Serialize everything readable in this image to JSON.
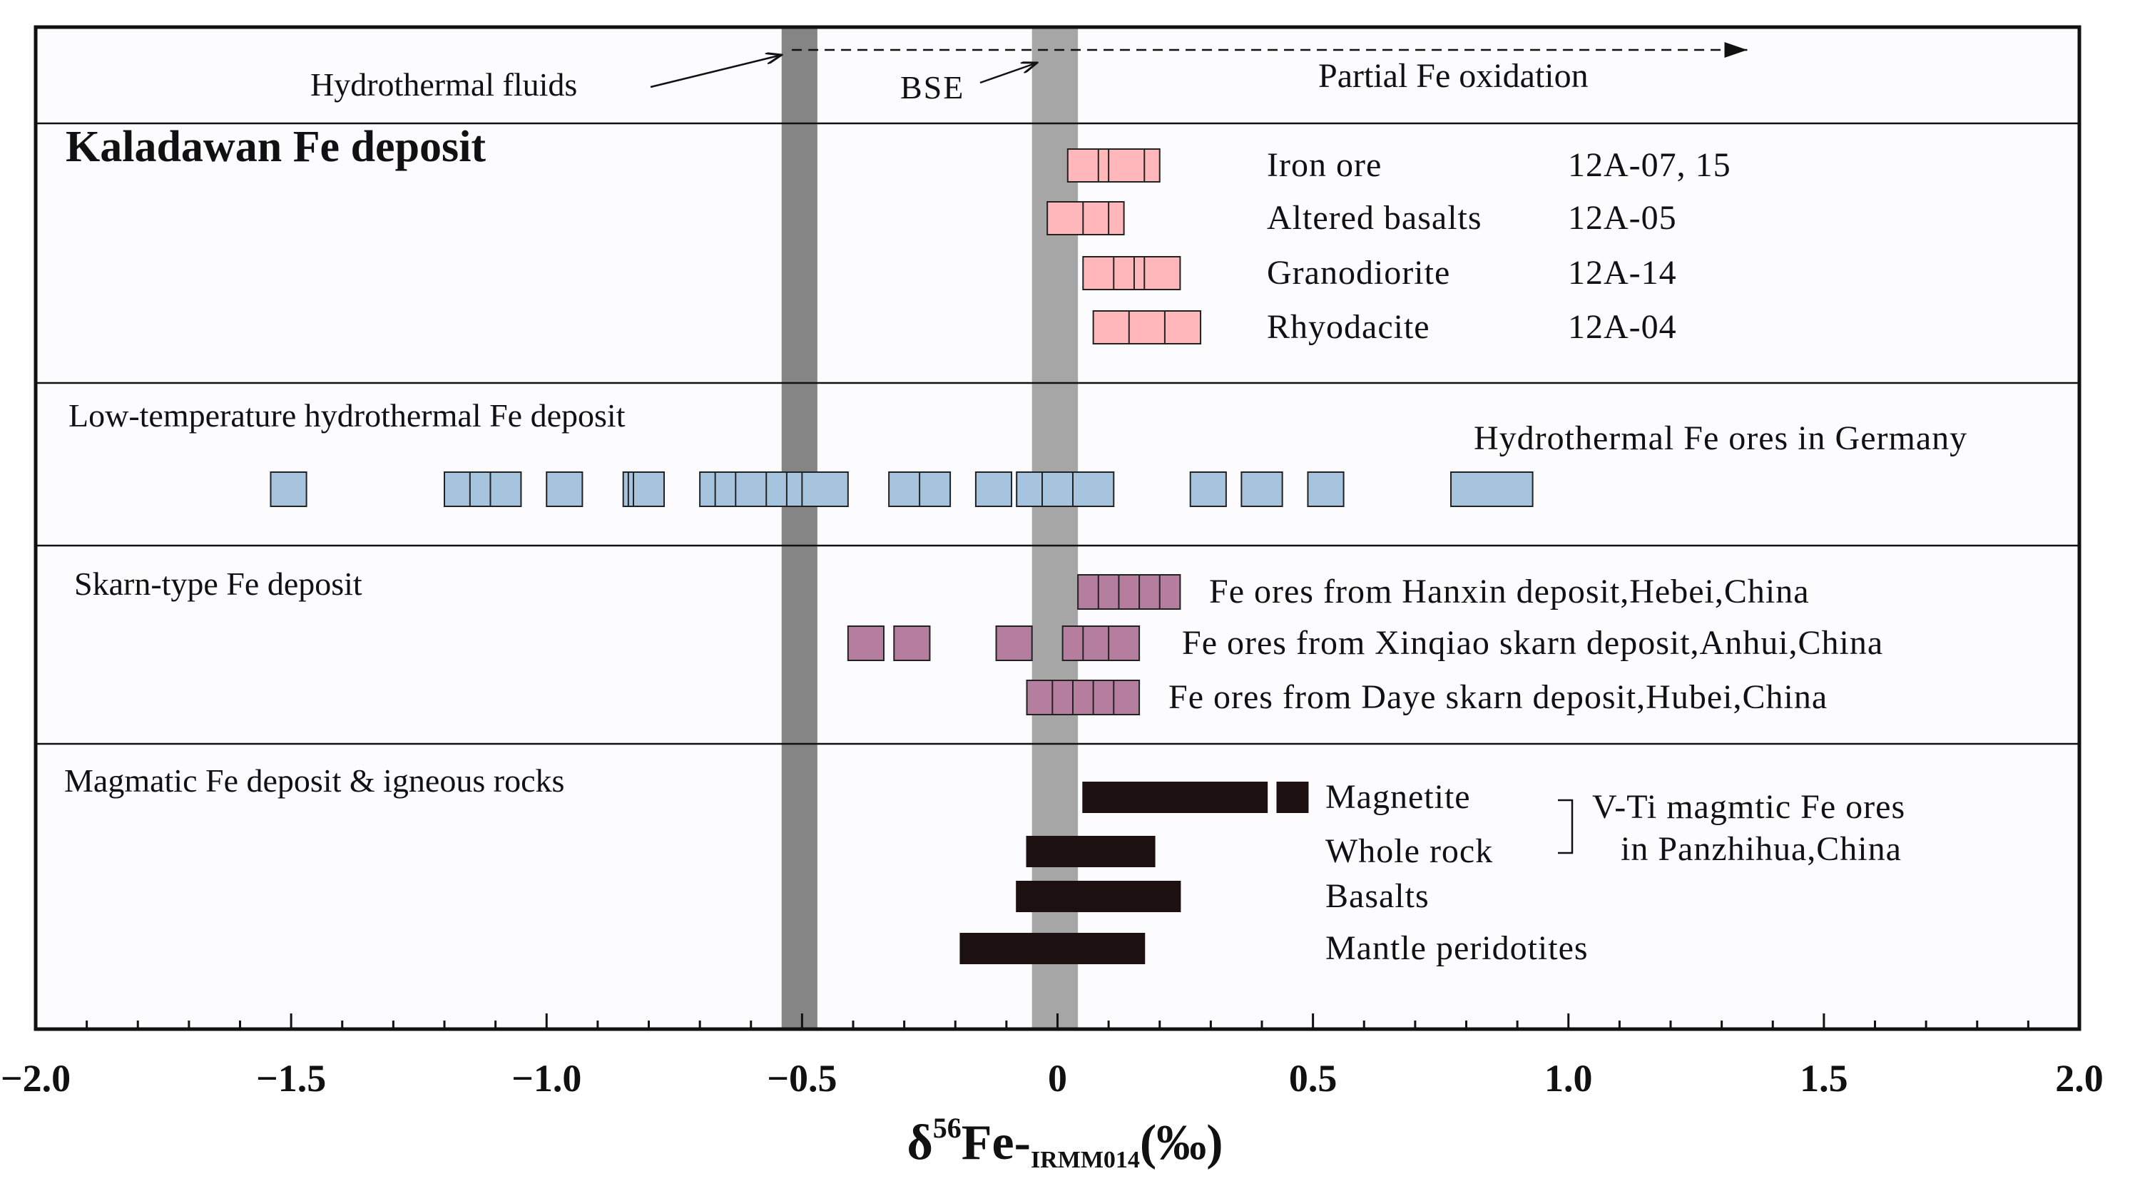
{
  "chart_data": {
    "type": "range",
    "title": "",
    "xlabel": "δ56Fe-IRMM014(‰)",
    "xlabel_parts": {
      "delta": "δ",
      "sup": "56",
      "main": "Fe-",
      "sub": "IRMM014",
      "unit": "(‰)"
    },
    "xlim": [
      -2.0,
      2.0
    ],
    "ticks": [
      {
        "value": -2.0,
        "label": "−2.0"
      },
      {
        "value": -1.5,
        "label": "−1.5"
      },
      {
        "value": -1.0,
        "label": "−1.0"
      },
      {
        "value": -0.5,
        "label": "−0.5"
      },
      {
        "value": 0.0,
        "label": "0"
      },
      {
        "value": 0.5,
        "label": "0.5"
      },
      {
        "value": 1.0,
        "label": "1.0"
      },
      {
        "value": 1.5,
        "label": "1.5"
      },
      {
        "value": 2.0,
        "label": "2.0"
      }
    ],
    "minor_tick_step": 0.1,
    "reference_bands": [
      {
        "name": "Hydrothermal fluids",
        "range": [
          -0.54,
          -0.47
        ],
        "color": "#858585"
      },
      {
        "name": "BSE",
        "range": [
          -0.05,
          0.04
        ],
        "color": "#a6a6a6"
      }
    ],
    "header": {
      "labels": [
        {
          "text": "Hydrothermal fluids",
          "arrow_to": -0.54
        },
        {
          "text": "BSE",
          "arrow_to": -0.04
        },
        {
          "text": "Partial Fe oxidation"
        }
      ],
      "oxidation_arrow_range": [
        -0.52,
        1.35
      ]
    },
    "panels": [
      {
        "title": "Kaladawan Fe deposit",
        "title_bold": true,
        "color": "#ffb7b9",
        "series": [
          {
            "name": "Iron ore",
            "sample": "12A-07, 15",
            "range": [
              0.02,
              0.2
            ],
            "dividers": [
              0.08,
              0.1,
              0.17
            ]
          },
          {
            "name": "Altered basalts",
            "sample": "12A-05",
            "range": [
              -0.02,
              0.13
            ],
            "dividers": [
              0.05,
              0.1
            ]
          },
          {
            "name": "Granodiorite",
            "sample": "12A-14",
            "range": [
              0.05,
              0.24
            ],
            "dividers": [
              0.11,
              0.15,
              0.17
            ]
          },
          {
            "name": "Rhyodacite",
            "sample": "12A-04",
            "range": [
              0.07,
              0.28
            ],
            "dividers": [
              0.14,
              0.21
            ]
          }
        ]
      },
      {
        "title": "Low-temperature hydrothermal Fe deposit",
        "color": "#a7c4df",
        "series": [
          {
            "name": "Hydrothermal Fe ores in Germany",
            "segments": [
              [
                -1.54,
                -1.47
              ],
              [
                -1.2,
                -1.05
              ],
              [
                -1.0,
                -0.93
              ],
              [
                -0.85,
                -0.77
              ],
              [
                -0.7,
                -0.41
              ],
              [
                -0.33,
                -0.21
              ],
              [
                -0.16,
                -0.09
              ],
              [
                -0.08,
                0.11
              ],
              [
                0.26,
                0.33
              ],
              [
                0.36,
                0.44
              ],
              [
                0.49,
                0.56
              ],
              [
                0.77,
                0.93
              ]
            ],
            "dividers": [
              -1.15,
              -1.11,
              -0.84,
              -0.83,
              -0.67,
              -0.63,
              -0.57,
              -0.53,
              -0.5,
              -0.27,
              -0.03,
              0.03
            ]
          }
        ]
      },
      {
        "title": "Skarn-type Fe deposit",
        "color": "#b67e9e",
        "series": [
          {
            "name": "Fe ores from Hanxin deposit,Hebei,China",
            "segments": [
              [
                0.04,
                0.24
              ]
            ],
            "dividers": [
              0.08,
              0.12,
              0.16,
              0.2
            ]
          },
          {
            "name": "Fe ores from Xinqiao skarn deposit,Anhui,China",
            "segments": [
              [
                -0.41,
                -0.34
              ],
              [
                -0.32,
                -0.25
              ],
              [
                -0.12,
                -0.05
              ],
              [
                0.01,
                0.16
              ]
            ],
            "dividers": [
              0.05,
              0.1
            ]
          },
          {
            "name": "Fe ores from Daye skarn deposit,Hubei,China",
            "segments": [
              [
                -0.06,
                0.16
              ]
            ],
            "dividers": [
              -0.01,
              0.03,
              0.07,
              0.11
            ]
          }
        ]
      },
      {
        "title": "Magmatic Fe deposit &  igneous rocks",
        "color": "#1c1010",
        "series": [
          {
            "name": "Magnetite",
            "segments": [
              [
                0.05,
                0.41
              ],
              [
                0.43,
                0.49
              ]
            ],
            "dividers": []
          },
          {
            "name": "Whole rock",
            "segments": [
              [
                -0.06,
                0.19
              ]
            ],
            "dividers": []
          },
          {
            "name": "Basalts",
            "segments": [
              [
                -0.08,
                0.24
              ]
            ],
            "dividers": []
          },
          {
            "name": "Mantle peridotites",
            "segments": [
              [
                -0.19,
                0.17
              ]
            ],
            "dividers": []
          }
        ],
        "bracket_label": [
          "V-Ti magmtic Fe ores",
          "in Panzhihua,China"
        ]
      }
    ]
  }
}
